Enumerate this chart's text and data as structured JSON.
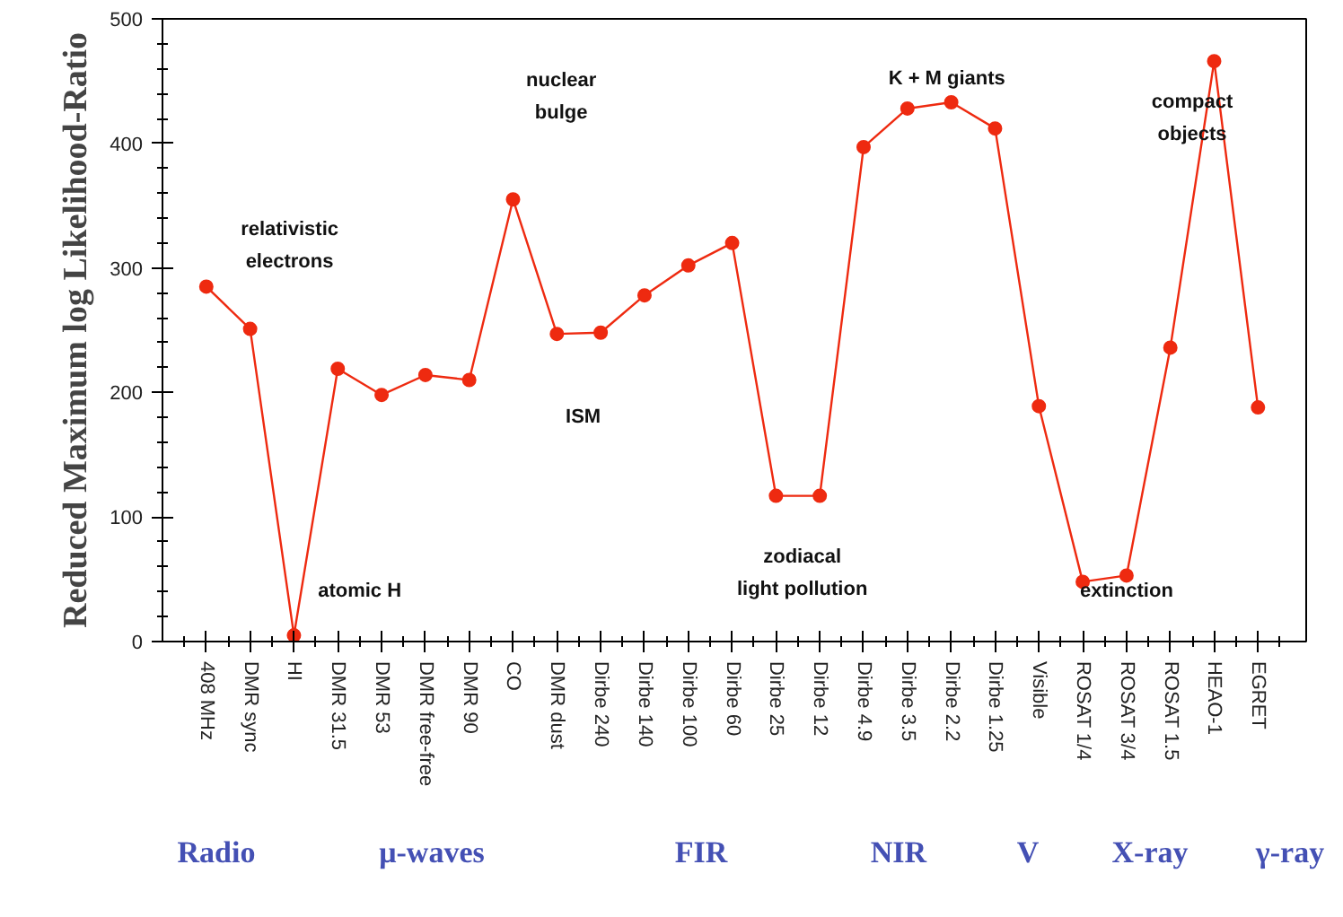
{
  "chart_data": {
    "type": "line",
    "ylabel": "Reduced Maximum log Likelihood-Ratio",
    "categories": [
      "408 MHz",
      "DMR sync",
      "HI",
      "DMR 31.5",
      "DMR 53",
      "DMR free-free",
      "DMR 90",
      "CO",
      "DMR dust",
      "Dirbe 240",
      "Dirbe 140",
      "Dirbe 100",
      "Dirbe 60",
      "Dirbe 25",
      "Dirbe 12",
      "Dirbe 4.9",
      "Dirbe 3.5",
      "Dirbe 2.2",
      "Dirbe 1.25",
      "Visible",
      "ROSAT 1/4",
      "ROSAT 3/4",
      "ROSAT 1.5",
      "HEAO-1",
      "EGRET"
    ],
    "series": [
      {
        "color": "#ee2a10",
        "values": [
          285,
          251,
          5,
          219,
          198,
          214,
          210,
          355,
          247,
          248,
          278,
          302,
          320,
          117,
          117,
          397,
          428,
          433,
          412,
          189,
          48,
          53,
          236,
          466,
          188
        ]
      }
    ],
    "ylim": [
      0,
      500
    ],
    "yticks": [
      0,
      100,
      200,
      300,
      400,
      500
    ],
    "marker": "circle",
    "line_style": "solid",
    "annotations": [
      "relativistic\nelectrons",
      "atomic H",
      "nuclear\nbulge",
      "ISM",
      "zodiacal\nlight pollution",
      "K + M giants",
      "extinction",
      "compact\nobjects",
      "Radio",
      "μ-waves",
      "FIR",
      "NIR",
      "V",
      "X-ray",
      "γ-ray"
    ]
  }
}
